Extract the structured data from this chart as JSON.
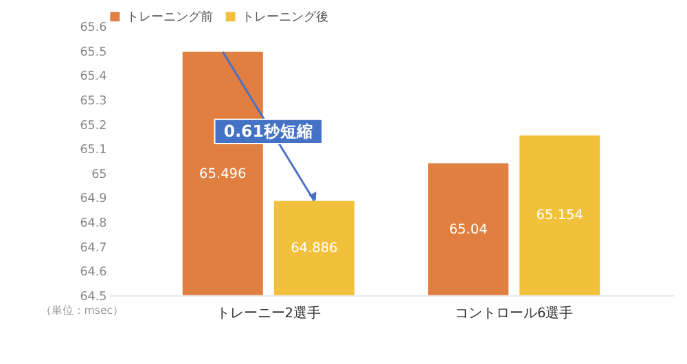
{
  "chart_data": {
    "type": "bar",
    "categories": [
      "トレーニー2選手",
      "コントロール6選手"
    ],
    "series": [
      {
        "name": "トレーニング前",
        "color": "#e07f3f",
        "values": [
          65.496,
          65.04
        ]
      },
      {
        "name": "トレーニング後",
        "color": "#f2c13c",
        "values": [
          64.886,
          65.154
        ]
      }
    ],
    "ylim": [
      64.5,
      65.6
    ],
    "yticks": [
      64.5,
      64.6,
      64.7,
      64.8,
      64.9,
      65,
      65.1,
      65.2,
      65.3,
      65.4,
      65.5,
      65.6
    ],
    "data_labels": true,
    "legend": "top",
    "grid": false,
    "annotations": [
      {
        "text": "0.61秒短縮",
        "x": "トレーニー2選手",
        "y": 65.17
      },
      "（単位：msec）"
    ]
  }
}
